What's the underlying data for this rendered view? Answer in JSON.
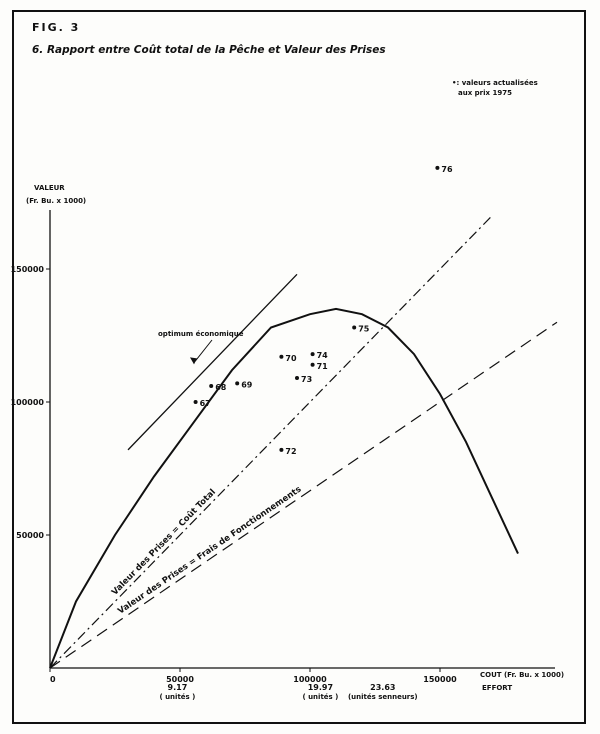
{
  "figure_label": "FIG. 3",
  "chart_data": {
    "type": "scatter",
    "title": "6. Rapport entre Coût total de la Pêche et Valeur des Prises",
    "note": [
      "•: valeurs actualisées",
      "aux prix 1975"
    ],
    "ylabel": [
      "VALEUR",
      "(Fr. Bu. x 1000)"
    ],
    "xlabel": "COUT (Fr. Bu. x 1000)",
    "effort_label": "EFFORT",
    "xlim": [
      0,
      195000
    ],
    "ylim": [
      0,
      175000
    ],
    "x_ticks": [
      {
        "value": 0,
        "label": "0"
      },
      {
        "value": 50000,
        "label": "50000"
      },
      {
        "value": 100000,
        "label": "100000"
      },
      {
        "value": 150000,
        "label": "150000"
      }
    ],
    "y_ticks": [
      {
        "value": 50000,
        "label": "50000"
      },
      {
        "value": 100000,
        "label": "100000"
      },
      {
        "value": 150000,
        "label": "150000"
      }
    ],
    "effort_ticks": [
      {
        "value": 49000,
        "label": "9.17",
        "sub": "( unités )"
      },
      {
        "value": 104000,
        "label": "19.97",
        "sub": "( unités )"
      },
      {
        "value": 128000,
        "label": "23.63",
        "sub": "(unités senneurs)"
      }
    ],
    "points": [
      {
        "label": "67",
        "x": 56000,
        "y": 100000
      },
      {
        "label": "68",
        "x": 62000,
        "y": 106000
      },
      {
        "label": "69",
        "x": 72000,
        "y": 107000
      },
      {
        "label": "70",
        "x": 89000,
        "y": 117000
      },
      {
        "label": "71",
        "x": 101000,
        "y": 114000
      },
      {
        "label": "72",
        "x": 89000,
        "y": 82000
      },
      {
        "label": "73",
        "x": 95000,
        "y": 109000
      },
      {
        "label": "74",
        "x": 101000,
        "y": 118000
      },
      {
        "label": "75",
        "x": 117000,
        "y": 128000
      },
      {
        "label": "76",
        "x": 149000,
        "y": 188000
      }
    ],
    "lines": [
      {
        "name": "Valeur des Prises = Coût Total",
        "style": "dash-dot",
        "x": [
          0,
          170000
        ],
        "y": [
          0,
          170000
        ]
      },
      {
        "name": "Valeur des Prises = Frais de Fonctionnements",
        "style": "dashed",
        "x": [
          0,
          195000
        ],
        "y": [
          0,
          130000
        ]
      }
    ],
    "curve": {
      "x": [
        0,
        10000,
        25000,
        40000,
        55000,
        70000,
        85000,
        100000,
        110000,
        120000,
        130000,
        140000,
        150000,
        160000,
        170000,
        180000
      ],
      "y": [
        0,
        25000,
        50000,
        72000,
        92000,
        112000,
        128000,
        133000,
        135000,
        133000,
        128000,
        118000,
        103000,
        85000,
        64000,
        43000
      ]
    },
    "tangent": {
      "x": [
        30000,
        95000
      ],
      "y": [
        82000,
        148000
      ]
    },
    "annotation": {
      "text": "optimum économique",
      "x": 55000,
      "y": 113000
    }
  }
}
